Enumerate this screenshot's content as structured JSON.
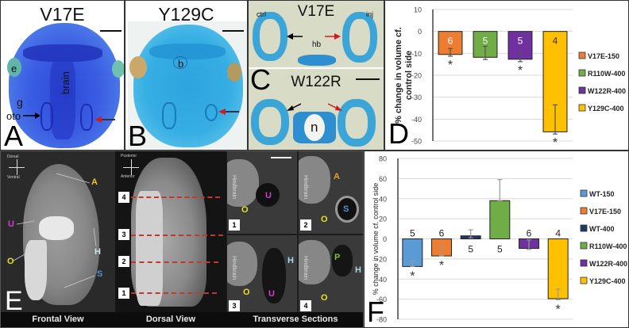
{
  "panels": {
    "A": {
      "letter": "A",
      "title": "V17E",
      "labels": {
        "e": "e",
        "g": "g",
        "brain": "brain",
        "oto": "oto"
      }
    },
    "B": {
      "letter": "B",
      "title": "Y129C",
      "labels": {
        "b": "b"
      }
    },
    "C": {
      "letter": "C",
      "top_title": "V17E",
      "bottom_title": "W122R",
      "labels": {
        "ctrl": "ctrl",
        "inj": "inj",
        "hb": "hb",
        "n": "n"
      }
    },
    "E": {
      "letter": "E",
      "frontal": {
        "orientation": {
          "top": "Dorsal",
          "bottom": "Ventral",
          "left": "Medial",
          "right": "Lateral"
        },
        "labels": {
          "A": "A",
          "U": "U",
          "O": "O",
          "H": "H",
          "S": "S"
        },
        "caption": "Frontal View"
      },
      "dorsal": {
        "orientation": {
          "top": "Posterior",
          "bottom": "Anterior",
          "left": "Medial",
          "right": "Lateral"
        },
        "section_markers": [
          "4",
          "3",
          "2",
          "1"
        ],
        "caption": "Dorsal View"
      },
      "transverse": {
        "caption": "Transverse Sections",
        "sections": [
          {
            "num": "1",
            "side_label": "Hindbrain",
            "labels": [
              "U",
              "O"
            ]
          },
          {
            "num": "2",
            "side_label": "Hindbrain",
            "labels": [
              "A",
              "S",
              "O"
            ]
          },
          {
            "num": "3",
            "side_label": "Hindbrain",
            "labels": [
              "H",
              "O",
              "U"
            ]
          },
          {
            "num": "4",
            "side_label": "Hindbrain",
            "labels": [
              "P",
              "H",
              "O"
            ]
          }
        ]
      }
    }
  },
  "chart_data": [
    {
      "panel": "D",
      "letter": "D",
      "type": "bar",
      "title": "",
      "xlabel": "",
      "ylabel": "% change in volume cf. control side",
      "ylim": [
        -50,
        10
      ],
      "yticks": [
        10,
        0,
        -10,
        -20,
        -30,
        -40,
        -50
      ],
      "grid": true,
      "legend_position": "right",
      "categories": [
        "V17E-150",
        "R110W-400",
        "W122R-400",
        "Y129C-400"
      ],
      "values": [
        -10.5,
        -11.8,
        -12.7,
        -45.8
      ],
      "error_bars": [
        [
          -11.3,
          -7.8
        ],
        [
          -12.8,
          -6.8
        ],
        [
          -13.8,
          -9.3
        ],
        [
          -46.8,
          -33.5
        ]
      ],
      "n_labels": [
        "6",
        "5",
        "5",
        "4"
      ],
      "significant": [
        true,
        false,
        true,
        true
      ],
      "significance_marker": "*",
      "colors": [
        "#ED7D31",
        "#70AD47",
        "#7030A0",
        "#FFC000"
      ]
    },
    {
      "panel": "F",
      "letter": "F",
      "type": "bar",
      "title": "",
      "xlabel": "",
      "ylabel": "% change in volume cf. control side",
      "ylim": [
        -80,
        80
      ],
      "yticks": [
        80,
        60,
        40,
        20,
        0,
        -20,
        -40,
        -60,
        -80
      ],
      "grid": true,
      "legend_position": "right",
      "categories": [
        "WT-150",
        "V17E-150",
        "WT-400",
        "R110W-400",
        "W122R-400",
        "Y129C-400"
      ],
      "values": [
        -27.5,
        -17,
        3,
        38,
        -9.5,
        -59.5
      ],
      "error_bars": [
        [
          -27.5,
          -22
        ],
        [
          -17,
          -7.5
        ],
        [
          1,
          9
        ],
        [
          38,
          59
        ],
        [
          -10.5,
          -1
        ],
        [
          -60.5,
          -50
        ]
      ],
      "n_labels": [
        "5",
        "6",
        "5",
        "5",
        "6",
        "4"
      ],
      "n_label_position": [
        "above",
        "above",
        "below",
        "below",
        "above",
        "above"
      ],
      "significant": [
        true,
        true,
        false,
        false,
        false,
        true
      ],
      "significance_marker": "*",
      "colors": [
        "#5B9BD5",
        "#ED7D31",
        "#1F3864",
        "#70AD47",
        "#7030A0",
        "#FFC000"
      ]
    }
  ]
}
